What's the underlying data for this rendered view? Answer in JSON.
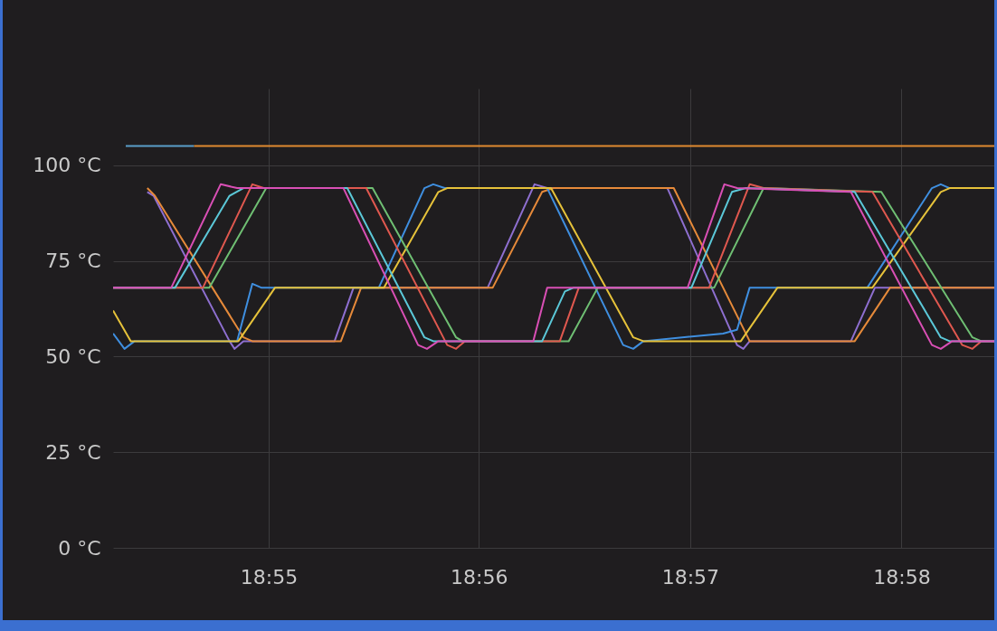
{
  "chart_data": {
    "type": "line",
    "xlim": [
      18.9044,
      18.9741
    ],
    "ylim": [
      0,
      120
    ],
    "xticks": [
      {
        "value": 18.9167,
        "label": "18:55"
      },
      {
        "value": 18.9333,
        "label": "18:56"
      },
      {
        "value": 18.95,
        "label": "18:57"
      },
      {
        "value": 18.9667,
        "label": "18:58"
      }
    ],
    "yticks": [
      {
        "value": 0,
        "label": "0 °C"
      },
      {
        "value": 25,
        "label": "25 °C"
      },
      {
        "value": 50,
        "label": "50 °C"
      },
      {
        "value": 75,
        "label": "75 °C"
      },
      {
        "value": 100,
        "label": "100 °C"
      }
    ],
    "grid": true,
    "marker": "none",
    "line_style": "solid",
    "series": [
      {
        "color": "#5a9ec8",
        "x": [
          18.9054,
          18.9108
        ],
        "values": [
          105,
          105
        ]
      },
      {
        "color": "#e08a30",
        "x": [
          18.9108,
          18.9741
        ],
        "values": [
          105,
          105
        ]
      },
      {
        "color": "#8e6fd0",
        "x": [
          18.9071,
          18.9076,
          18.9136,
          18.914,
          18.9147,
          18.9219,
          18.9234,
          18.934,
          18.9377,
          18.9387,
          18.9482,
          18.9537,
          18.9542,
          18.9547,
          18.9627,
          18.9646,
          18.9741
        ],
        "values": [
          93,
          92,
          54,
          52,
          54,
          54,
          68,
          68,
          95,
          94,
          94,
          53,
          52,
          54,
          54,
          68,
          68
        ]
      },
      {
        "color": "#e68a3a",
        "x": [
          18.9071,
          18.9077,
          18.9147,
          18.9154,
          18.9224,
          18.924,
          18.9344,
          18.9383,
          18.9392,
          18.9487,
          18.9547,
          18.963,
          18.9658,
          18.9741
        ],
        "values": [
          94,
          92,
          55,
          54,
          54,
          68,
          68,
          93,
          94,
          94,
          54,
          54,
          68,
          68
        ]
      },
      {
        "color": "#3f8fe0",
        "x": [
          18.9044,
          18.9053,
          18.9061,
          18.9142,
          18.9154,
          18.9161,
          18.9254,
          18.929,
          18.9297,
          18.9306,
          18.9387,
          18.9447,
          18.9455,
          18.9463,
          18.9526,
          18.9537,
          18.9547,
          18.964,
          18.9691,
          18.9698,
          18.9705,
          18.9741
        ],
        "values": [
          56,
          52,
          54,
          54,
          69,
          68,
          68,
          94,
          95,
          94,
          94,
          53,
          52,
          54,
          56,
          57,
          68,
          68,
          94,
          95,
          94,
          94
        ]
      },
      {
        "color": "#e6c23a",
        "x": [
          18.9044,
          18.9058,
          18.9143,
          18.9172,
          18.9258,
          18.9301,
          18.9308,
          18.939,
          18.9455,
          18.9463,
          18.954,
          18.9569,
          18.9644,
          18.9698,
          18.9705,
          18.9741
        ],
        "values": [
          62,
          54,
          54,
          68,
          68,
          93,
          94,
          94,
          55,
          54,
          54,
          68,
          68,
          93,
          94,
          94
        ]
      },
      {
        "color": "#6fbf73",
        "x": [
          18.9044,
          18.912,
          18.9165,
          18.9249,
          18.9315,
          18.932,
          18.9404,
          18.9427,
          18.9519,
          18.9558,
          18.9651,
          18.9723,
          18.973,
          18.9741
        ],
        "values": [
          68,
          68,
          94,
          94,
          55,
          54,
          54,
          68,
          68,
          94,
          93,
          55,
          54,
          54
        ]
      },
      {
        "color": "#e0584f",
        "x": [
          18.9044,
          18.9115,
          18.9154,
          18.9163,
          18.9244,
          18.9308,
          18.9315,
          18.9322,
          18.9397,
          18.9412,
          18.9515,
          18.9547,
          18.9558,
          18.9644,
          18.9715,
          18.9723,
          18.973,
          18.9741
        ],
        "values": [
          68,
          68,
          95,
          94,
          94,
          53,
          52,
          54,
          54,
          68,
          68,
          95,
          94,
          93,
          53,
          52,
          54,
          54
        ]
      },
      {
        "color": "#5bc8d8",
        "x": [
          18.9044,
          18.9093,
          18.9136,
          18.9147,
          18.9229,
          18.929,
          18.9297,
          18.9383,
          18.9401,
          18.9408,
          18.9501,
          18.9533,
          18.9544,
          18.963,
          18.9698,
          18.9705,
          18.9741
        ],
        "values": [
          68,
          68,
          92,
          94,
          94,
          55,
          54,
          54,
          67,
          68,
          68,
          93,
          94,
          93,
          55,
          54,
          54
        ]
      },
      {
        "color": "#d94fb5",
        "x": [
          18.9044,
          18.909,
          18.9129,
          18.9142,
          18.9226,
          18.9285,
          18.9292,
          18.9301,
          18.9376,
          18.9387,
          18.9392,
          18.9498,
          18.9527,
          18.9537,
          18.9627,
          18.9691,
          18.9698,
          18.9707,
          18.9741
        ],
        "values": [
          68,
          68,
          95,
          94,
          94,
          53,
          52,
          54,
          54,
          68,
          68,
          68,
          95,
          94,
          93,
          53,
          52,
          54,
          54
        ]
      }
    ]
  }
}
